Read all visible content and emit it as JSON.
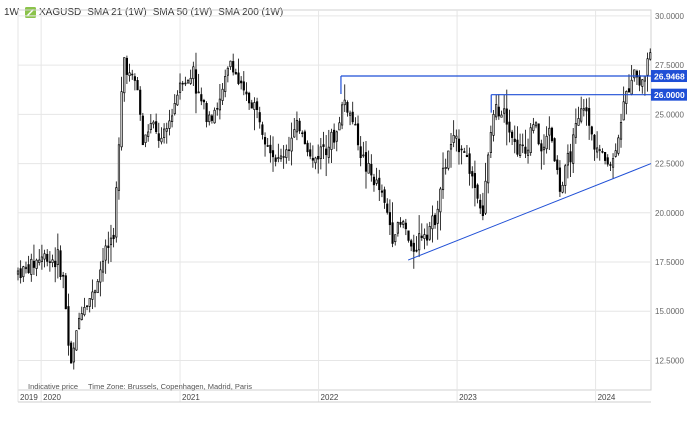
{
  "header": {
    "interval": "1W",
    "symbol": "XAGUSD",
    "indicators": [
      "SMA 21 (1W)",
      "SMA 50 (1W)",
      "SMA 200 (1W)"
    ]
  },
  "footer": {
    "indicative": "Indicative price",
    "timezone": "Time Zone: Brussels, Copenhagen, Madrid, Paris"
  },
  "colors": {
    "candles": "#000000",
    "lines": "#1f4fd6",
    "label_bg": "#1f4fd6",
    "icon": "#8bc34a",
    "grid": "#e6e6e6"
  },
  "chart_data": {
    "type": "candlestick",
    "interval": "weekly",
    "ylim": [
      11.0,
      30.3
    ],
    "y_ticks": [
      12.5,
      15.0,
      17.5,
      20.0,
      22.5,
      25.0,
      27.5,
      30.0
    ],
    "y_tick_labels": [
      "12.5000",
      "15.0000",
      "17.5000",
      "20.0000",
      "22.5000",
      "25.0000",
      "27.5000",
      "30.0000"
    ],
    "x_tick_labels": [
      "2019",
      "2020",
      "2021",
      "2022",
      "2023",
      "2024"
    ],
    "x_tick_dates": [
      "2019-11-01",
      "2020-01-01",
      "2021-01-01",
      "2022-01-01",
      "2023-01-01",
      "2024-01-01"
    ],
    "x_range": [
      "2019-11-01",
      "2024-05-26"
    ],
    "price_path": [
      [
        "2019-11-01",
        17.0
      ],
      [
        "2019-12-01",
        17.2
      ],
      [
        "2020-01-01",
        17.8
      ],
      [
        "2020-02-15",
        17.6
      ],
      [
        "2020-03-01",
        16.5
      ],
      [
        "2020-03-18",
        12.0
      ],
      [
        "2020-04-15",
        15.2
      ],
      [
        "2020-05-15",
        15.8
      ],
      [
        "2020-06-15",
        17.8
      ],
      [
        "2020-07-10",
        19.0
      ],
      [
        "2020-07-25",
        23.5
      ],
      [
        "2020-08-05",
        28.0
      ],
      [
        "2020-08-20",
        27.0
      ],
      [
        "2020-09-10",
        26.5
      ],
      [
        "2020-09-25",
        23.5
      ],
      [
        "2020-10-15",
        24.5
      ],
      [
        "2020-11-15",
        23.5
      ],
      [
        "2020-12-10",
        25.0
      ],
      [
        "2021-01-05",
        27.0
      ],
      [
        "2021-01-25",
        26.5
      ],
      [
        "2021-02-05",
        27.5
      ],
      [
        "2021-02-15",
        26.0
      ],
      [
        "2021-03-15",
        25.0
      ],
      [
        "2021-04-15",
        25.5
      ],
      [
        "2021-05-15",
        27.8
      ],
      [
        "2021-06-15",
        26.0
      ],
      [
        "2021-07-15",
        25.5
      ],
      [
        "2021-08-15",
        24.0
      ],
      [
        "2021-09-15",
        22.5
      ],
      [
        "2021-10-15",
        23.5
      ],
      [
        "2021-11-15",
        24.5
      ],
      [
        "2021-12-15",
        22.5
      ],
      [
        "2022-01-15",
        23.5
      ],
      [
        "2022-02-15",
        23.8
      ],
      [
        "2022-03-08",
        25.8
      ],
      [
        "2022-04-05",
        24.5
      ],
      [
        "2022-05-01",
        22.5
      ],
      [
        "2022-06-15",
        21.0
      ],
      [
        "2022-07-15",
        19.0
      ],
      [
        "2022-08-15",
        19.5
      ],
      [
        "2022-09-01",
        18.0
      ],
      [
        "2022-10-01",
        19.0
      ],
      [
        "2022-11-01",
        19.5
      ],
      [
        "2022-11-20",
        21.5
      ],
      [
        "2022-12-15",
        23.5
      ],
      [
        "2023-01-15",
        23.5
      ],
      [
        "2023-02-15",
        21.5
      ],
      [
        "2023-03-10",
        20.0
      ],
      [
        "2023-04-05",
        25.0
      ],
      [
        "2023-05-05",
        25.5
      ],
      [
        "2023-06-01",
        23.5
      ],
      [
        "2023-07-01",
        23.0
      ],
      [
        "2023-07-20",
        24.8
      ],
      [
        "2023-08-15",
        22.8
      ],
      [
        "2023-09-01",
        24.5
      ],
      [
        "2023-10-01",
        21.0
      ],
      [
        "2023-11-01",
        23.5
      ],
      [
        "2023-12-01",
        25.5
      ],
      [
        "2023-12-20",
        24.0
      ],
      [
        "2024-01-20",
        22.8
      ],
      [
        "2024-02-15",
        22.5
      ],
      [
        "2024-03-05",
        24.5
      ],
      [
        "2024-04-10",
        27.5
      ],
      [
        "2024-04-25",
        26.5
      ],
      [
        "2024-05-10",
        27.0
      ],
      [
        "2024-05-20",
        28.0
      ]
    ],
    "annotations": {
      "resistance_upper": {
        "value": 26.9468,
        "label": "26.9468",
        "from": "2022-03-01",
        "to": "2024-05-26"
      },
      "resistance_lower": {
        "value": 26.0,
        "label": "26.0000",
        "from": "2023-04-01",
        "to": "2024-05-26"
      },
      "support_trendline": {
        "points": [
          [
            "2022-08-25",
            17.6
          ],
          [
            "2024-05-26",
            22.5
          ]
        ]
      }
    }
  }
}
